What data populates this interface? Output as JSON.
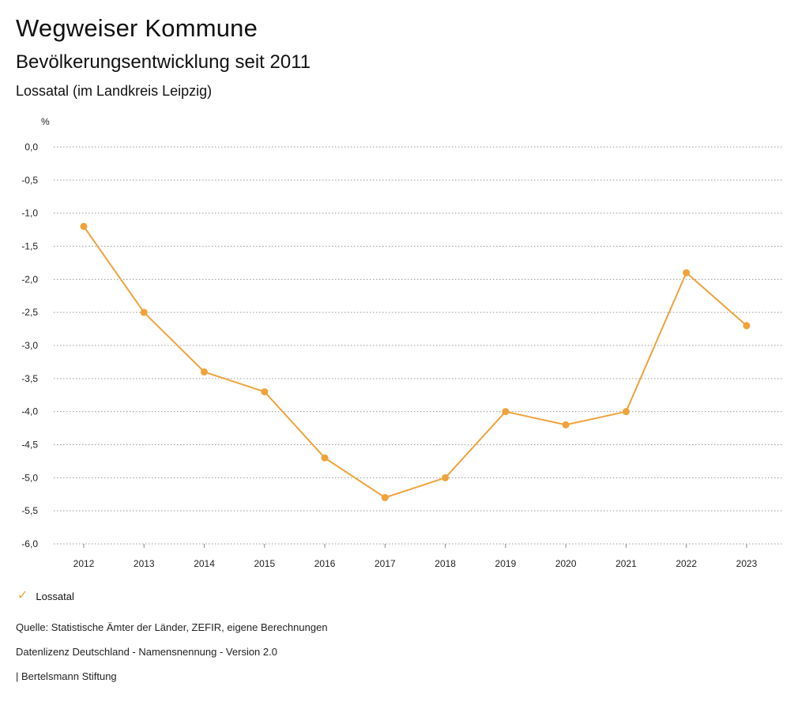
{
  "header": {
    "title": "Wegweiser Kommune",
    "subtitle": "Bevölkerungsentwicklung seit 2011",
    "region": "Lossatal (im Landkreis Leipzig)"
  },
  "chart_data": {
    "type": "line",
    "title": "Bevölkerungsentwicklung seit 2011",
    "ylabel": "%",
    "xlabel": "",
    "ylim": [
      -6.0,
      0.0
    ],
    "yticks": [
      0.0,
      -0.5,
      -1.0,
      -1.5,
      -2.0,
      -2.5,
      -3.0,
      -3.5,
      -4.0,
      -4.5,
      -5.0,
      -5.5,
      -6.0
    ],
    "ytick_labels": [
      "0,0",
      "-0,5",
      "-1,0",
      "-1,5",
      "-2,0",
      "-2,5",
      "-3,0",
      "-3,5",
      "-4,0",
      "-4,5",
      "-5,0",
      "-5,5",
      "-6,0"
    ],
    "categories": [
      "2012",
      "2013",
      "2014",
      "2015",
      "2016",
      "2017",
      "2018",
      "2019",
      "2020",
      "2021",
      "2022",
      "2023"
    ],
    "series": [
      {
        "name": "Lossatal",
        "color": "#f0a23a",
        "values": [
          -1.2,
          -2.5,
          -3.4,
          -3.7,
          -4.7,
          -5.3,
          -5.0,
          -4.0,
          -4.2,
          -4.0,
          -1.9,
          -2.7
        ]
      }
    ],
    "grid": true,
    "legend_position": "bottom-left"
  },
  "legend": {
    "label": "Lossatal",
    "icon": "check-icon"
  },
  "footer": {
    "source": "Quelle: Statistische Ämter der Länder, ZEFIR, eigene Berechnungen",
    "license": "Datenlizenz Deutschland - Namensnennung - Version 2.0",
    "publisher": "| Bertelsmann Stiftung"
  }
}
